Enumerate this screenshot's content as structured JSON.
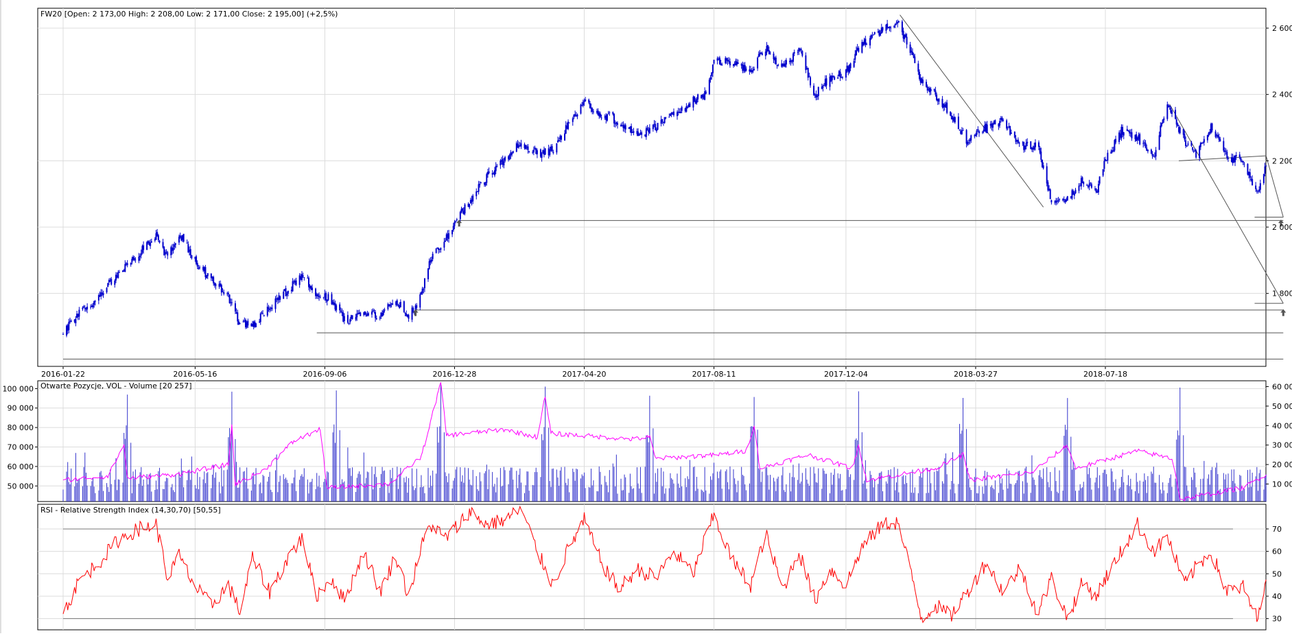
{
  "chart_data": [
    {
      "type": "candlestick",
      "title": "FW20 [Open: 2 173,00  High: 2 208,00  Low: 2 171,00  Close: 2 195,00] (+2,5%)",
      "series_name": "FW20",
      "ohlc_last": {
        "open": 2173.0,
        "high": 2208.0,
        "low": 2171.0,
        "close": 2195.0,
        "change_pct": 2.5
      },
      "x_tick_labels": [
        "2016-01-22",
        "2016-05-16",
        "2016-09-06",
        "2016-12-28",
        "2017-04-20",
        "2017-08-11",
        "2017-12-04",
        "2018-03-27",
        "2018-07-18"
      ],
      "y_tick_labels": [
        "2 600",
        "2 400",
        "2 200",
        "2 000",
        "1 800"
      ],
      "y_ticks": [
        2600,
        2400,
        2200,
        2000,
        1800
      ],
      "ylim": [
        1580,
        2660
      ],
      "x_range": [
        "2016-01-22",
        "2018-12-05"
      ],
      "candle_color": "#0000cc",
      "close_path": [
        [
          "2016-01-22",
          1680
        ],
        [
          "2016-02-05",
          1740
        ],
        [
          "2016-02-22",
          1790
        ],
        [
          "2016-03-10",
          1860
        ],
        [
          "2016-03-28",
          1920
        ],
        [
          "2016-04-12",
          1970
        ],
        [
          "2016-04-22",
          1910
        ],
        [
          "2016-05-02",
          1980
        ],
        [
          "2016-05-16",
          1900
        ],
        [
          "2016-05-30",
          1840
        ],
        [
          "2016-06-14",
          1790
        ],
        [
          "2016-06-24",
          1710
        ],
        [
          "2016-07-05",
          1700
        ],
        [
          "2016-07-20",
          1760
        ],
        [
          "2016-08-08",
          1820
        ],
        [
          "2016-08-18",
          1860
        ],
        [
          "2016-08-29",
          1800
        ],
        [
          "2016-09-12",
          1780
        ],
        [
          "2016-09-23",
          1720
        ],
        [
          "2016-10-10",
          1740
        ],
        [
          "2016-10-24",
          1730
        ],
        [
          "2016-11-07",
          1780
        ],
        [
          "2016-11-18",
          1730
        ],
        [
          "2016-11-29",
          1790
        ],
        [
          "2016-12-07",
          1900
        ],
        [
          "2016-12-20",
          1960
        ],
        [
          "2016-12-30",
          2020
        ],
        [
          "2017-01-10",
          2080
        ],
        [
          "2017-01-25",
          2150
        ],
        [
          "2017-02-10",
          2200
        ],
        [
          "2017-02-24",
          2260
        ],
        [
          "2017-03-10",
          2220
        ],
        [
          "2017-03-24",
          2230
        ],
        [
          "2017-04-05",
          2300
        ],
        [
          "2017-04-20",
          2380
        ],
        [
          "2017-05-05",
          2340
        ],
        [
          "2017-05-20",
          2320
        ],
        [
          "2017-06-05",
          2280
        ],
        [
          "2017-06-22",
          2300
        ],
        [
          "2017-07-07",
          2340
        ],
        [
          "2017-07-24",
          2380
        ],
        [
          "2017-08-04",
          2400
        ],
        [
          "2017-08-11",
          2500
        ],
        [
          "2017-08-28",
          2500
        ],
        [
          "2017-09-12",
          2470
        ],
        [
          "2017-09-25",
          2540
        ],
        [
          "2017-10-10",
          2480
        ],
        [
          "2017-10-24",
          2540
        ],
        [
          "2017-11-07",
          2400
        ],
        [
          "2017-11-20",
          2450
        ],
        [
          "2017-12-04",
          2470
        ],
        [
          "2017-12-18",
          2550
        ],
        [
          "2018-01-05",
          2600
        ],
        [
          "2018-01-18",
          2620
        ],
        [
          "2018-01-30",
          2520
        ],
        [
          "2018-02-08",
          2440
        ],
        [
          "2018-02-20",
          2400
        ],
        [
          "2018-03-05",
          2340
        ],
        [
          "2018-03-20",
          2260
        ],
        [
          "2018-04-05",
          2300
        ],
        [
          "2018-04-20",
          2320
        ],
        [
          "2018-05-05",
          2240
        ],
        [
          "2018-05-20",
          2250
        ],
        [
          "2018-06-01",
          2080
        ],
        [
          "2018-06-15",
          2090
        ],
        [
          "2018-06-28",
          2140
        ],
        [
          "2018-07-10",
          2110
        ],
        [
          "2018-07-18",
          2200
        ],
        [
          "2018-08-01",
          2290
        ],
        [
          "2018-08-15",
          2270
        ],
        [
          "2018-08-30",
          2220
        ],
        [
          "2018-09-10",
          2380
        ],
        [
          "2018-09-25",
          2260
        ],
        [
          "2018-10-05",
          2220
        ],
        [
          "2018-10-18",
          2300
        ],
        [
          "2018-11-01",
          2210
        ],
        [
          "2018-11-15",
          2200
        ],
        [
          "2018-11-28",
          2100
        ],
        [
          "2018-12-05",
          2195
        ]
      ],
      "annotations": {
        "trend_lines": [
          [
            [
              "2018-01-20",
              2640
            ],
            [
              "2018-05-25",
              2060
            ]
          ],
          [
            [
              "2018-09-20",
              2200
            ],
            [
              "2018-12-05",
              2215
            ]
          ],
          [
            [
              "2018-12-05",
              2215
            ],
            [
              "2018-12-20",
              2030
            ]
          ],
          [
            [
              "2018-09-12",
              2370
            ],
            [
              "2018-12-20",
              1770
            ]
          ]
        ],
        "horizontal_levels": [
          {
            "y": 2020,
            "from": "2017-01-01",
            "to": "2018-12-20"
          },
          {
            "y": 1750,
            "from": "2016-11-24",
            "to": "2018-12-20"
          },
          {
            "y": 1681,
            "from": "2016-08-30",
            "to": "2018-12-20"
          },
          {
            "y": 1602,
            "from": "2016-01-22",
            "to": "2018-12-20"
          }
        ],
        "arrow_markers": [
          {
            "x": "2017-01-01",
            "y": 2010
          },
          {
            "x": "2016-11-24",
            "y": 1740
          },
          {
            "x": "2018-12-18",
            "y": 2010
          },
          {
            "x": "2018-12-20",
            "y": 1740
          }
        ],
        "short_marks": [
          {
            "x1": "2018-11-25",
            "x2": "2018-12-20",
            "y": 2030
          },
          {
            "x1": "2018-11-25",
            "x2": "2018-12-20",
            "y": 1770
          }
        ]
      }
    },
    {
      "type": "bar",
      "title": "Otwarte Pozycje, VOL - Volume [20 257]",
      "series": [
        {
          "name": "Otwarte Pozycje",
          "color": "#ff00ff",
          "axis": "right"
        },
        {
          "name": "VOL - Volume",
          "color": "#3333cc",
          "axis": "left"
        }
      ],
      "volume_last": 20257,
      "y_left_tick_labels": [
        "100 000",
        "90 000",
        "80 000",
        "70 000",
        "60 000",
        "50 000"
      ],
      "y_left_ticks": [
        100000,
        90000,
        80000,
        70000,
        60000,
        50000
      ],
      "y_left_lim": [
        42000,
        104000
      ],
      "y_right_tick_labels": [
        "60 000",
        "50 000",
        "40 000",
        "30 000",
        "20 000",
        "10 000"
      ],
      "y_right_ticks": [
        60000,
        50000,
        40000,
        30000,
        20000,
        10000
      ],
      "y_right_lim": [
        1000,
        63000
      ],
      "open_interest_path": [
        [
          "2016-01-22",
          12000
        ],
        [
          "2016-03-01",
          14000
        ],
        [
          "2016-03-15",
          30000
        ],
        [
          "2016-03-18",
          13000
        ],
        [
          "2016-05-01",
          15000
        ],
        [
          "2016-06-14",
          20000
        ],
        [
          "2016-06-17",
          40000
        ],
        [
          "2016-06-20",
          10000
        ],
        [
          "2016-07-15",
          17000
        ],
        [
          "2016-08-10",
          32000
        ],
        [
          "2016-09-02",
          38000
        ],
        [
          "2016-09-08",
          8000
        ],
        [
          "2016-11-01",
          10000
        ],
        [
          "2016-11-29",
          24000
        ],
        [
          "2016-12-16",
          62000
        ],
        [
          "2016-12-21",
          35000
        ],
        [
          "2017-02-10",
          38000
        ],
        [
          "2017-03-10",
          34000
        ],
        [
          "2017-03-17",
          55000
        ],
        [
          "2017-03-22",
          36000
        ],
        [
          "2017-06-01",
          33000
        ],
        [
          "2017-06-16",
          34000
        ],
        [
          "2017-06-21",
          23000
        ],
        [
          "2017-08-15",
          25000
        ],
        [
          "2017-09-08",
          27000
        ],
        [
          "2017-09-15",
          40000
        ],
        [
          "2017-09-20",
          18000
        ],
        [
          "2017-11-01",
          25000
        ],
        [
          "2017-12-10",
          18000
        ],
        [
          "2017-12-15",
          30000
        ],
        [
          "2017-12-22",
          12000
        ],
        [
          "2018-02-20",
          18000
        ],
        [
          "2018-03-16",
          25000
        ],
        [
          "2018-03-22",
          12000
        ],
        [
          "2018-05-15",
          16000
        ],
        [
          "2018-06-15",
          30000
        ],
        [
          "2018-06-22",
          18000
        ],
        [
          "2018-08-15",
          27000
        ],
        [
          "2018-09-15",
          23000
        ],
        [
          "2018-09-21",
          2000
        ],
        [
          "2018-11-15",
          8000
        ],
        [
          "2018-12-05",
          15000
        ]
      ],
      "volume_note": "Daily volume bars, typically 45 000–68 000 with expiration-day spikes near 95 000–103 000"
    },
    {
      "type": "line",
      "title": "RSI - Relative Strength Index (14,30,70) [50,55]",
      "series": [
        {
          "name": "RSI",
          "color": "#ff0000"
        }
      ],
      "rsi_last": 50.55,
      "y_tick_labels": [
        "70",
        "60",
        "50",
        "40",
        "30"
      ],
      "y_ticks": [
        70,
        60,
        50,
        40,
        30
      ],
      "ylim": [
        25,
        81
      ],
      "reference_levels": [
        70,
        30
      ],
      "rsi_path": [
        [
          "2016-01-22",
          32
        ],
        [
          "2016-02-05",
          47
        ],
        [
          "2016-02-22",
          55
        ],
        [
          "2016-03-10",
          65
        ],
        [
          "2016-03-28",
          70
        ],
        [
          "2016-04-12",
          72
        ],
        [
          "2016-04-22",
          48
        ],
        [
          "2016-05-02",
          58
        ],
        [
          "2016-05-16",
          44
        ],
        [
          "2016-05-30",
          36
        ],
        [
          "2016-06-14",
          45
        ],
        [
          "2016-06-24",
          33
        ],
        [
          "2016-07-05",
          57
        ],
        [
          "2016-07-20",
          42
        ],
        [
          "2016-08-08",
          60
        ],
        [
          "2016-08-18",
          66
        ],
        [
          "2016-08-29",
          40
        ],
        [
          "2016-09-12",
          48
        ],
        [
          "2016-09-23",
          38
        ],
        [
          "2016-10-10",
          60
        ],
        [
          "2016-10-24",
          42
        ],
        [
          "2016-11-07",
          58
        ],
        [
          "2016-11-18",
          40
        ],
        [
          "2016-11-29",
          62
        ],
        [
          "2016-12-07",
          72
        ],
        [
          "2016-12-20",
          66
        ],
        [
          "2016-12-30",
          71
        ],
        [
          "2017-01-10",
          78
        ],
        [
          "2017-01-25",
          72
        ],
        [
          "2017-02-10",
          74
        ],
        [
          "2017-02-24",
          79
        ],
        [
          "2017-03-10",
          60
        ],
        [
          "2017-03-24",
          45
        ],
        [
          "2017-04-05",
          60
        ],
        [
          "2017-04-20",
          74
        ],
        [
          "2017-05-05",
          55
        ],
        [
          "2017-05-20",
          43
        ],
        [
          "2017-06-05",
          52
        ],
        [
          "2017-06-22",
          48
        ],
        [
          "2017-07-07",
          60
        ],
        [
          "2017-07-24",
          50
        ],
        [
          "2017-08-04",
          67
        ],
        [
          "2017-08-11",
          76
        ],
        [
          "2017-08-28",
          55
        ],
        [
          "2017-09-12",
          45
        ],
        [
          "2017-09-25",
          68
        ],
        [
          "2017-10-10",
          43
        ],
        [
          "2017-10-24",
          60
        ],
        [
          "2017-11-07",
          38
        ],
        [
          "2017-11-20",
          52
        ],
        [
          "2017-12-04",
          45
        ],
        [
          "2017-12-18",
          62
        ],
        [
          "2018-01-05",
          72
        ],
        [
          "2018-01-18",
          73
        ],
        [
          "2018-01-30",
          50
        ],
        [
          "2018-02-08",
          30
        ],
        [
          "2018-02-20",
          36
        ],
        [
          "2018-03-05",
          31
        ],
        [
          "2018-03-20",
          42
        ],
        [
          "2018-04-05",
          55
        ],
        [
          "2018-04-20",
          42
        ],
        [
          "2018-05-05",
          53
        ],
        [
          "2018-05-20",
          32
        ],
        [
          "2018-06-01",
          48
        ],
        [
          "2018-06-15",
          30
        ],
        [
          "2018-06-28",
          46
        ],
        [
          "2018-07-10",
          40
        ],
        [
          "2018-07-18",
          48
        ],
        [
          "2018-08-01",
          60
        ],
        [
          "2018-08-15",
          72
        ],
        [
          "2018-08-30",
          60
        ],
        [
          "2018-09-10",
          67
        ],
        [
          "2018-09-25",
          45
        ],
        [
          "2018-10-05",
          53
        ],
        [
          "2018-10-18",
          60
        ],
        [
          "2018-11-01",
          42
        ],
        [
          "2018-11-15",
          44
        ],
        [
          "2018-11-28",
          29
        ],
        [
          "2018-12-05",
          50.55
        ]
      ]
    }
  ]
}
